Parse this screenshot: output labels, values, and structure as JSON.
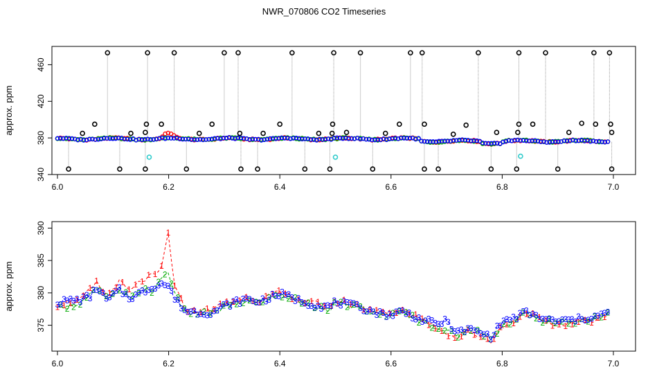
{
  "chart_data": [
    {
      "id": "top",
      "type": "scatter",
      "title": "NWR_070806  CO2 Timeseries",
      "xlabel": "",
      "ylabel": "approx. ppm",
      "xlim": [
        6.0,
        7.0
      ],
      "ylim": [
        340,
        480
      ],
      "xticks": [
        6.0,
        6.2,
        6.4,
        6.6,
        6.8,
        7.0
      ],
      "xtick_labels": [
        "6.0",
        "6.2",
        "6.4",
        "6.6",
        "6.8",
        "7.0"
      ],
      "yticks": [
        340,
        380,
        420,
        460
      ],
      "ytick_labels": [
        "340",
        "380",
        "420",
        "460"
      ],
      "grid": false,
      "colors": {
        "s1": "#ff0000",
        "s2": "#00aa00",
        "s3": "#0000ff",
        "outlier": "#000000",
        "flag": "#33cccc",
        "spike": "#999999"
      },
      "outliers_high": [
        6.09,
        6.162,
        6.21,
        6.3,
        6.325,
        6.422,
        6.497,
        6.545,
        6.635,
        6.656,
        6.757,
        6.83,
        6.878,
        6.965,
        6.993
      ],
      "outliers_low": [
        6.02,
        6.112,
        6.158,
        6.232,
        6.33,
        6.36,
        6.445,
        6.49,
        6.567,
        6.66,
        6.685,
        6.78,
        6.826,
        6.9,
        6.997
      ],
      "outliers_mid": [
        {
          "x": 6.045,
          "y": 385
        },
        {
          "x": 6.067,
          "y": 395
        },
        {
          "x": 6.132,
          "y": 385
        },
        {
          "x": 6.16,
          "y": 395
        },
        {
          "x": 6.158,
          "y": 386
        },
        {
          "x": 6.187,
          "y": 395
        },
        {
          "x": 6.255,
          "y": 385
        },
        {
          "x": 6.278,
          "y": 395
        },
        {
          "x": 6.328,
          "y": 385
        },
        {
          "x": 6.37,
          "y": 385
        },
        {
          "x": 6.4,
          "y": 395
        },
        {
          "x": 6.47,
          "y": 385
        },
        {
          "x": 6.494,
          "y": 385
        },
        {
          "x": 6.495,
          "y": 395
        },
        {
          "x": 6.52,
          "y": 386
        },
        {
          "x": 6.59,
          "y": 385
        },
        {
          "x": 6.615,
          "y": 395
        },
        {
          "x": 6.66,
          "y": 395
        },
        {
          "x": 6.712,
          "y": 384
        },
        {
          "x": 6.735,
          "y": 394
        },
        {
          "x": 6.79,
          "y": 386
        },
        {
          "x": 6.828,
          "y": 386
        },
        {
          "x": 6.83,
          "y": 395
        },
        {
          "x": 6.855,
          "y": 395
        },
        {
          "x": 6.92,
          "y": 386
        },
        {
          "x": 6.943,
          "y": 396
        },
        {
          "x": 6.968,
          "y": 395
        },
        {
          "x": 6.995,
          "y": 395
        },
        {
          "x": 6.997,
          "y": 386
        }
      ],
      "flagged": [
        {
          "x": 6.165,
          "y": 359
        },
        {
          "x": 6.5,
          "y": 359
        },
        {
          "x": 6.833,
          "y": 360
        }
      ]
    },
    {
      "id": "bottom",
      "type": "scatter",
      "title": "",
      "xlabel": "",
      "ylabel": "approx. ppm",
      "xlim": [
        6.0,
        7.0
      ],
      "ylim": [
        371,
        391
      ],
      "xticks": [
        6.0,
        6.2,
        6.4,
        6.6,
        6.8,
        7.0
      ],
      "xtick_labels": [
        "6.0",
        "6.2",
        "6.4",
        "6.6",
        "6.8",
        "7.0"
      ],
      "yticks": [
        375,
        380,
        385,
        390
      ],
      "ytick_labels": [
        "375",
        "380",
        "385",
        "390"
      ],
      "grid": false,
      "point_symbols": [
        "1",
        "2",
        "3"
      ],
      "colors": {
        "s1": "#ff0000",
        "s2": "#00aa00",
        "s3": "#0000ff"
      },
      "series_x": [
        6.0,
        6.02,
        6.04,
        6.06,
        6.07,
        6.09,
        6.11,
        6.13,
        6.15,
        6.17,
        6.185,
        6.2,
        6.21,
        6.23,
        6.26,
        6.28,
        6.3,
        6.32,
        6.34,
        6.36,
        6.38,
        6.4,
        6.42,
        6.45,
        6.47,
        6.49,
        6.5,
        6.52,
        6.55,
        6.58,
        6.6,
        6.62,
        6.65,
        6.68,
        6.7,
        6.72,
        6.74,
        6.76,
        6.78,
        6.8,
        6.82,
        6.84,
        6.86,
        6.88,
        6.9,
        6.93,
        6.96,
        6.99
      ],
      "series": [
        {
          "name": "1",
          "values": [
            378.2,
            378.6,
            378.8,
            380.5,
            381.5,
            379.5,
            381.8,
            380.2,
            381.8,
            382.6,
            383.0,
            389.5,
            381.0,
            377.5,
            377.2,
            377.5,
            378.3,
            378.8,
            379.2,
            378.8,
            379.5,
            380.0,
            379.5,
            378.5,
            378.3,
            378.0,
            378.8,
            378.5,
            377.8,
            377.0,
            376.8,
            377.6,
            376.2,
            374.8,
            373.8,
            373.0,
            374.2,
            373.2,
            372.6,
            374.8,
            375.5,
            377.0,
            376.3,
            375.2,
            375.0,
            375.5,
            375.8,
            376.5
          ]
        },
        {
          "name": "2",
          "values": [
            377.8,
            378.0,
            378.4,
            379.8,
            380.5,
            379.0,
            380.0,
            379.6,
            380.5,
            380.2,
            382.0,
            383.5,
            379.8,
            377.0,
            376.8,
            377.0,
            377.8,
            378.2,
            378.8,
            378.4,
            379.0,
            379.6,
            379.2,
            378.2,
            377.8,
            377.6,
            378.4,
            378.0,
            377.4,
            376.6,
            376.5,
            377.0,
            375.8,
            374.8,
            374.0,
            373.4,
            374.6,
            374.0,
            373.0,
            375.0,
            375.6,
            376.8,
            376.0,
            375.6,
            375.4,
            375.6,
            376.0,
            376.6
          ]
        },
        {
          "name": "3",
          "values": [
            378.5,
            378.8,
            378.9,
            379.5,
            380.8,
            378.8,
            380.5,
            379.2,
            380.0,
            380.8,
            381.5,
            381.0,
            379.2,
            377.2,
            376.9,
            377.0,
            378.0,
            378.5,
            379.0,
            378.6,
            379.2,
            379.8,
            379.3,
            378.4,
            378.0,
            377.8,
            378.6,
            378.2,
            377.6,
            376.8,
            376.6,
            377.2,
            376.0,
            375.2,
            375.6,
            373.8,
            374.4,
            373.8,
            373.2,
            375.6,
            376.0,
            377.0,
            376.4,
            375.8,
            375.6,
            375.8,
            376.2,
            376.8
          ]
        }
      ]
    }
  ]
}
